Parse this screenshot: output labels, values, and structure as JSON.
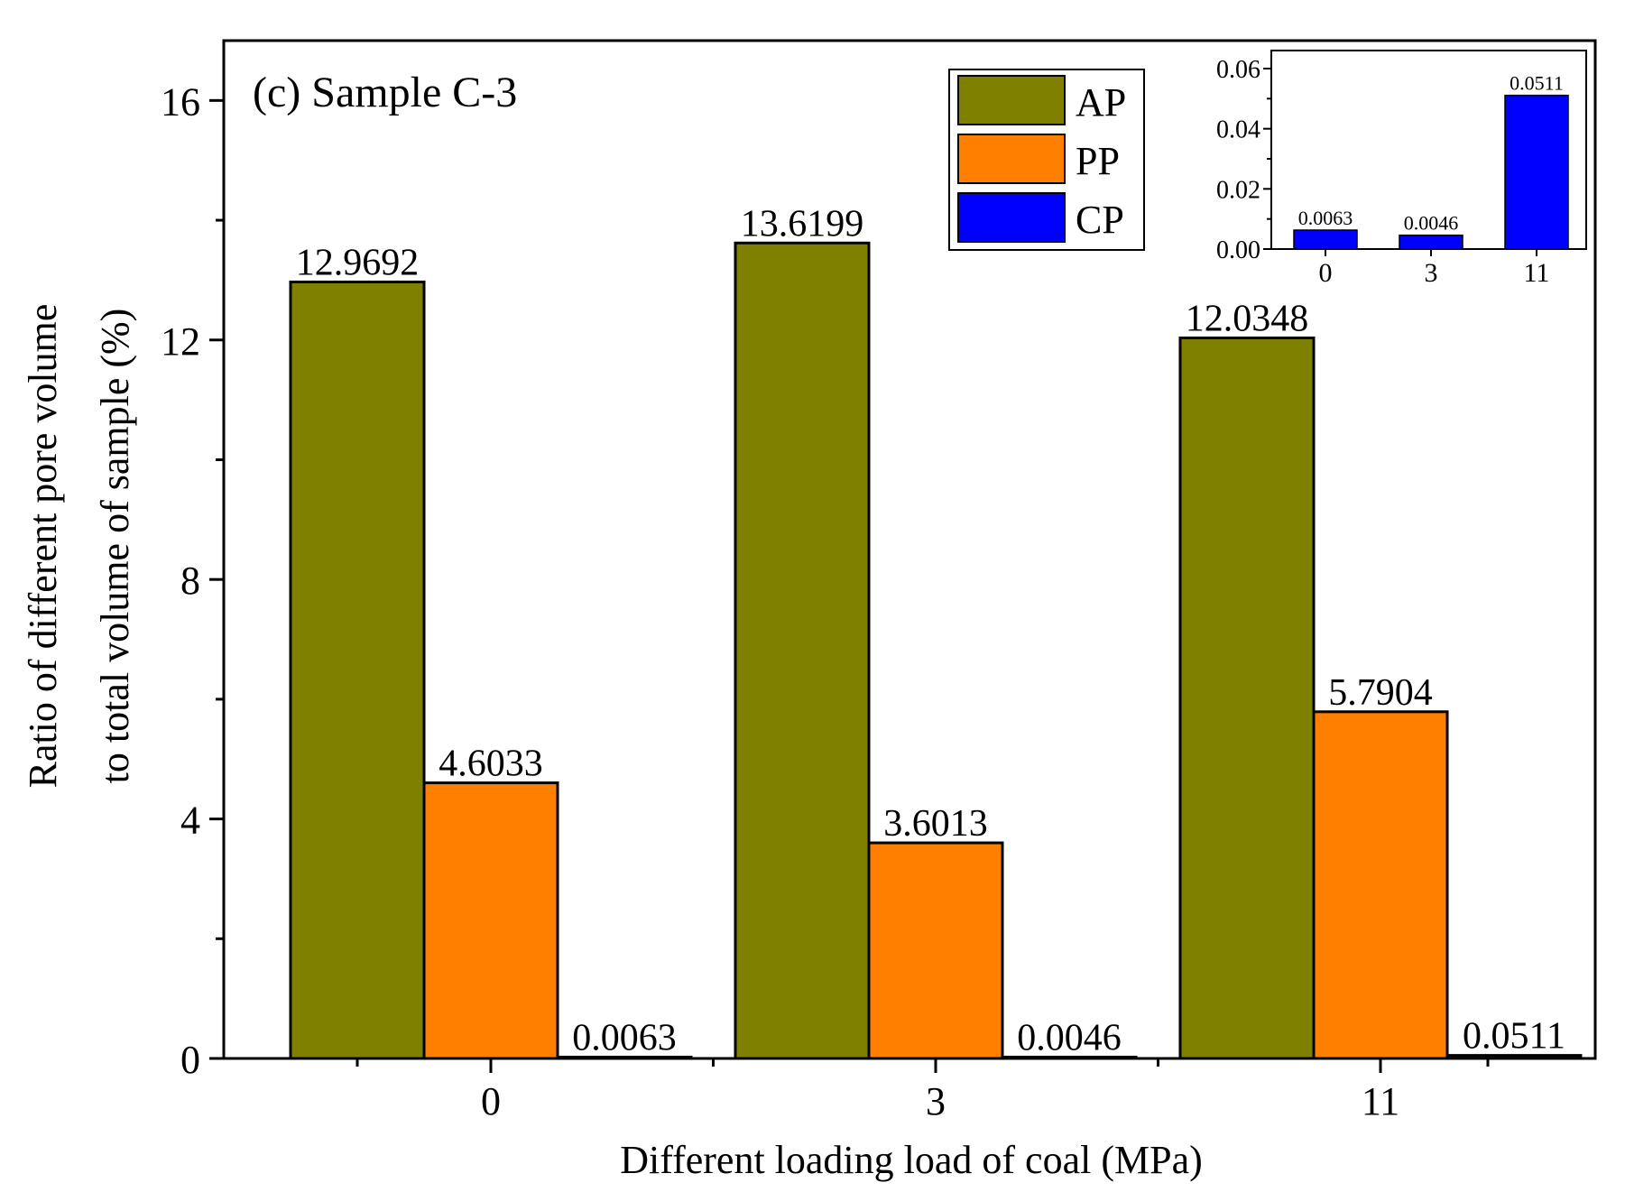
{
  "colors": {
    "AP": "#808000",
    "PP": "#ff8000",
    "CP": "#0000ff",
    "axis": "#000000",
    "background": "#ffffff"
  },
  "chart_data": [
    {
      "type": "bar",
      "title": "(c) Sample C-3",
      "xlabel": "Different loading load of coal (MPa)",
      "ylabel_line1": "Ratio of different pore volume",
      "ylabel_line2": "to total volume of sample (%)",
      "categories": [
        "0",
        "3",
        "11"
      ],
      "series": [
        {
          "name": "AP",
          "values": [
            12.9692,
            13.6199,
            12.0348
          ],
          "labels": [
            "12.9692",
            "13.6199",
            "12.0348"
          ]
        },
        {
          "name": "PP",
          "values": [
            4.6033,
            3.6013,
            5.7904
          ],
          "labels": [
            "4.6033",
            "3.6013",
            "5.7904"
          ]
        },
        {
          "name": "CP",
          "values": [
            0.0063,
            0.0046,
            0.0511
          ],
          "labels": [
            "0.0063",
            "0.0046",
            "0.0511"
          ]
        }
      ],
      "ylim": [
        0,
        17
      ],
      "yticks": [
        0,
        4,
        8,
        12,
        16
      ],
      "ytick_labels": [
        "0",
        "4",
        "8",
        "12",
        "16"
      ],
      "legend": {
        "position": "top-center",
        "entries": [
          "AP",
          "PP",
          "CP"
        ]
      },
      "grid": false
    },
    {
      "type": "bar",
      "role": "inset",
      "categories": [
        "0",
        "3",
        "11"
      ],
      "series": [
        {
          "name": "CP",
          "values": [
            0.0063,
            0.0046,
            0.0511
          ],
          "labels": [
            "0.0063",
            "0.0046",
            "0.0511"
          ]
        }
      ],
      "ylim": [
        0,
        0.066
      ],
      "yticks": [
        0,
        0.02,
        0.04,
        0.06
      ],
      "ytick_labels": [
        "0.00",
        "0.02",
        "0.04",
        "0.06"
      ],
      "grid": false
    }
  ]
}
